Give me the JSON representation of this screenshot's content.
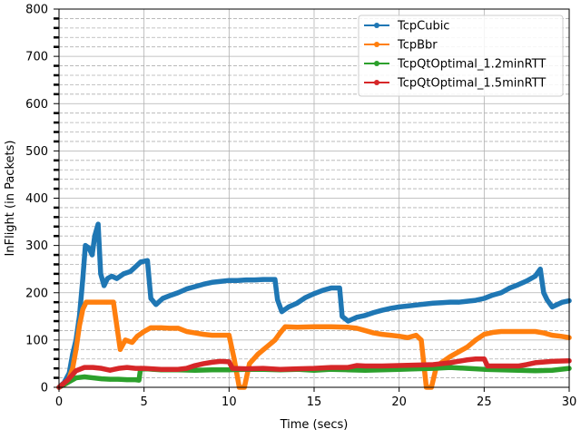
{
  "chart_data": {
    "type": "line",
    "title": "",
    "xlabel": "Time (secs)",
    "ylabel": "InFlight (in Packets)",
    "xlim": [
      0,
      30
    ],
    "ylim": [
      0,
      800
    ],
    "x_major_ticks": [
      0,
      5,
      10,
      15,
      20,
      25,
      30
    ],
    "x_tick_labels": [
      "0",
      "5",
      "10",
      "15",
      "20",
      "25",
      "30"
    ],
    "y_major_ticks": [
      0,
      100,
      200,
      300,
      400,
      500,
      600,
      700,
      800
    ],
    "y_tick_labels": [
      "0",
      "100",
      "200",
      "300",
      "400",
      "500",
      "600",
      "700",
      "800"
    ],
    "y_minor_step": 20,
    "grid": {
      "major": "solid",
      "minor_y": "dashed"
    },
    "legend": {
      "placement": "top-right",
      "entries": [
        "TcpCubic",
        "TcpBbr",
        "TcpQtOptimal_1.2minRTT",
        "TcpQtOptimal_1.5minRTT"
      ]
    },
    "series": [
      {
        "name": "TcpCubic",
        "color": "#1f77b4",
        "points": [
          [
            0,
            0
          ],
          [
            0.3,
            10
          ],
          [
            0.6,
            30
          ],
          [
            0.8,
            70
          ],
          [
            1.0,
            100
          ],
          [
            1.2,
            150
          ],
          [
            1.4,
            230
          ],
          [
            1.55,
            300
          ],
          [
            1.75,
            295
          ],
          [
            1.95,
            280
          ],
          [
            2.1,
            320
          ],
          [
            2.3,
            345
          ],
          [
            2.45,
            240
          ],
          [
            2.65,
            215
          ],
          [
            2.85,
            230
          ],
          [
            3.1,
            235
          ],
          [
            3.4,
            230
          ],
          [
            3.8,
            240
          ],
          [
            4.2,
            245
          ],
          [
            4.5,
            255
          ],
          [
            4.8,
            265
          ],
          [
            5.2,
            268
          ],
          [
            5.4,
            188
          ],
          [
            5.7,
            175
          ],
          [
            6.1,
            188
          ],
          [
            6.6,
            195
          ],
          [
            7.0,
            200
          ],
          [
            7.5,
            208
          ],
          [
            8.0,
            213
          ],
          [
            8.5,
            218
          ],
          [
            9.0,
            222
          ],
          [
            9.5,
            224
          ],
          [
            10.0,
            226
          ],
          [
            10.5,
            226
          ],
          [
            11.0,
            227
          ],
          [
            11.5,
            227
          ],
          [
            12.0,
            228
          ],
          [
            12.7,
            228
          ],
          [
            12.85,
            185
          ],
          [
            13.1,
            160
          ],
          [
            13.5,
            170
          ],
          [
            14.0,
            178
          ],
          [
            14.5,
            190
          ],
          [
            15.0,
            198
          ],
          [
            15.5,
            205
          ],
          [
            16.0,
            210
          ],
          [
            16.5,
            210
          ],
          [
            16.65,
            150
          ],
          [
            17.0,
            140
          ],
          [
            17.5,
            148
          ],
          [
            18.0,
            152
          ],
          [
            18.5,
            158
          ],
          [
            19.0,
            163
          ],
          [
            19.5,
            167
          ],
          [
            20.0,
            170
          ],
          [
            20.5,
            172
          ],
          [
            21.0,
            174
          ],
          [
            21.5,
            176
          ],
          [
            22.0,
            178
          ],
          [
            22.5,
            179
          ],
          [
            23.0,
            180
          ],
          [
            23.5,
            180
          ],
          [
            24.0,
            182
          ],
          [
            24.5,
            184
          ],
          [
            25.0,
            188
          ],
          [
            25.5,
            195
          ],
          [
            26.0,
            200
          ],
          [
            26.5,
            210
          ],
          [
            27.0,
            217
          ],
          [
            27.5,
            225
          ],
          [
            28.0,
            235
          ],
          [
            28.3,
            250
          ],
          [
            28.5,
            200
          ],
          [
            28.7,
            185
          ],
          [
            29.0,
            170
          ],
          [
            29.3,
            175
          ],
          [
            29.6,
            180
          ],
          [
            30.0,
            183
          ]
        ]
      },
      {
        "name": "TcpBbr",
        "color": "#ff7f0e",
        "points": [
          [
            0,
            0
          ],
          [
            0.5,
            10
          ],
          [
            0.8,
            40
          ],
          [
            1.0,
            80
          ],
          [
            1.2,
            130
          ],
          [
            1.4,
            165
          ],
          [
            1.6,
            180
          ],
          [
            2.2,
            180
          ],
          [
            2.8,
            180
          ],
          [
            3.2,
            180
          ],
          [
            3.4,
            130
          ],
          [
            3.6,
            80
          ],
          [
            3.9,
            100
          ],
          [
            4.3,
            95
          ],
          [
            4.6,
            108
          ],
          [
            5.0,
            118
          ],
          [
            5.4,
            126
          ],
          [
            6.0,
            126
          ],
          [
            6.5,
            125
          ],
          [
            7.0,
            125
          ],
          [
            7.5,
            118
          ],
          [
            8.0,
            115
          ],
          [
            8.5,
            112
          ],
          [
            9.0,
            110
          ],
          [
            9.5,
            110
          ],
          [
            10.0,
            110
          ],
          [
            10.3,
            60
          ],
          [
            10.6,
            0
          ],
          [
            10.9,
            0
          ],
          [
            11.2,
            50
          ],
          [
            11.7,
            70
          ],
          [
            12.2,
            85
          ],
          [
            12.7,
            100
          ],
          [
            13.0,
            115
          ],
          [
            13.3,
            128
          ],
          [
            14.0,
            127
          ],
          [
            15.0,
            128
          ],
          [
            16.0,
            128
          ],
          [
            17.0,
            127
          ],
          [
            17.5,
            125
          ],
          [
            18.0,
            120
          ],
          [
            18.5,
            115
          ],
          [
            19.0,
            112
          ],
          [
            19.5,
            110
          ],
          [
            20.0,
            108
          ],
          [
            20.5,
            105
          ],
          [
            21.0,
            110
          ],
          [
            21.3,
            100
          ],
          [
            21.6,
            0
          ],
          [
            21.9,
            0
          ],
          [
            22.2,
            45
          ],
          [
            22.6,
            55
          ],
          [
            23.0,
            65
          ],
          [
            23.5,
            75
          ],
          [
            24.0,
            85
          ],
          [
            24.5,
            100
          ],
          [
            25.0,
            112
          ],
          [
            25.5,
            116
          ],
          [
            26.0,
            118
          ],
          [
            27.0,
            118
          ],
          [
            28.0,
            118
          ],
          [
            28.5,
            115
          ],
          [
            29.0,
            110
          ],
          [
            29.5,
            108
          ],
          [
            30.0,
            105
          ]
        ]
      },
      {
        "name": "TcpQtOptimal_1.2minRTT",
        "color": "#2ca02c",
        "points": [
          [
            0,
            0
          ],
          [
            0.5,
            10
          ],
          [
            1.0,
            20
          ],
          [
            1.5,
            22
          ],
          [
            2.0,
            20
          ],
          [
            2.5,
            18
          ],
          [
            3.0,
            17
          ],
          [
            3.5,
            17
          ],
          [
            4.0,
            16
          ],
          [
            4.5,
            16
          ],
          [
            4.7,
            15
          ],
          [
            4.8,
            40
          ],
          [
            5.5,
            38
          ],
          [
            6.0,
            37
          ],
          [
            7.0,
            37
          ],
          [
            8.0,
            36
          ],
          [
            9.0,
            37
          ],
          [
            10.0,
            37
          ],
          [
            11.0,
            38
          ],
          [
            12.0,
            38
          ],
          [
            13.0,
            37
          ],
          [
            14.0,
            38
          ],
          [
            15.0,
            36
          ],
          [
            16.0,
            38
          ],
          [
            17.0,
            37
          ],
          [
            18.0,
            36
          ],
          [
            19.0,
            37
          ],
          [
            20.0,
            38
          ],
          [
            21.0,
            39
          ],
          [
            22.0,
            40
          ],
          [
            23.0,
            42
          ],
          [
            24.0,
            40
          ],
          [
            25.0,
            38
          ],
          [
            26.0,
            37
          ],
          [
            27.0,
            36
          ],
          [
            28.0,
            35
          ],
          [
            29.0,
            36
          ],
          [
            30.0,
            40
          ]
        ]
      },
      {
        "name": "TcpQtOptimal_1.5minRTT",
        "color": "#d62728",
        "points": [
          [
            0,
            0
          ],
          [
            0.5,
            15
          ],
          [
            1.0,
            35
          ],
          [
            1.5,
            42
          ],
          [
            2.0,
            42
          ],
          [
            2.5,
            40
          ],
          [
            3.0,
            36
          ],
          [
            3.5,
            40
          ],
          [
            4.0,
            42
          ],
          [
            4.5,
            40
          ],
          [
            5.0,
            40
          ],
          [
            6.0,
            38
          ],
          [
            7.0,
            38
          ],
          [
            7.5,
            40
          ],
          [
            8.0,
            46
          ],
          [
            8.5,
            50
          ],
          [
            9.0,
            53
          ],
          [
            9.5,
            55
          ],
          [
            10.0,
            54
          ],
          [
            10.2,
            40
          ],
          [
            11.0,
            39
          ],
          [
            12.0,
            40
          ],
          [
            13.0,
            38
          ],
          [
            14.0,
            39
          ],
          [
            15.0,
            40
          ],
          [
            16.0,
            42
          ],
          [
            17.0,
            42
          ],
          [
            17.5,
            46
          ],
          [
            18.0,
            45
          ],
          [
            18.5,
            45
          ],
          [
            19.0,
            45
          ],
          [
            20.0,
            46
          ],
          [
            21.0,
            47
          ],
          [
            22.0,
            48
          ],
          [
            22.5,
            50
          ],
          [
            23.0,
            52
          ],
          [
            23.5,
            55
          ],
          [
            24.0,
            58
          ],
          [
            24.5,
            60
          ],
          [
            25.0,
            60
          ],
          [
            25.2,
            45
          ],
          [
            26.0,
            45
          ],
          [
            27.0,
            45
          ],
          [
            27.5,
            48
          ],
          [
            28.0,
            52
          ],
          [
            29.0,
            55
          ],
          [
            30.0,
            56
          ]
        ]
      }
    ]
  }
}
